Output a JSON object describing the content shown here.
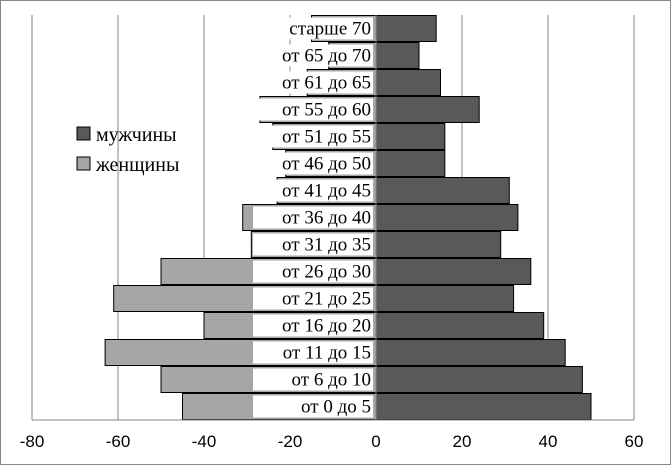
{
  "chart_data": {
    "type": "bar",
    "orientation": "horizontal",
    "categories": [
      "от 0 до 5",
      "от 6 до 10",
      "от 11 до 15",
      "от 16 до 20",
      "от 21 до 25",
      "от 26 до 30",
      "от 31 до 35",
      "от 36 до 40",
      "от 41 до 45",
      "от 46 до 50",
      "от 51 до 55",
      "от 55 до 60",
      "от 61 до 65",
      "от 65  до 70",
      "старше 70"
    ],
    "series": [
      {
        "name": "мужчины",
        "color": "#595959",
        "values": [
          50,
          48,
          44,
          39,
          32,
          36,
          29,
          33,
          31,
          16,
          16,
          24,
          15,
          10,
          14
        ]
      },
      {
        "name": "женщины",
        "color": "#a6a6a6",
        "values": [
          -45,
          -50,
          -63,
          -40,
          -61,
          -50,
          -29,
          -31,
          -23,
          -21,
          -24,
          -27,
          -16,
          -11,
          -15
        ]
      }
    ],
    "xlim": [
      -80,
      60
    ],
    "xticks": [
      "-80",
      "-60",
      "-40",
      "-20",
      "0",
      "20",
      "40",
      "60"
    ],
    "grid": "vertical",
    "legend_position": "left"
  }
}
